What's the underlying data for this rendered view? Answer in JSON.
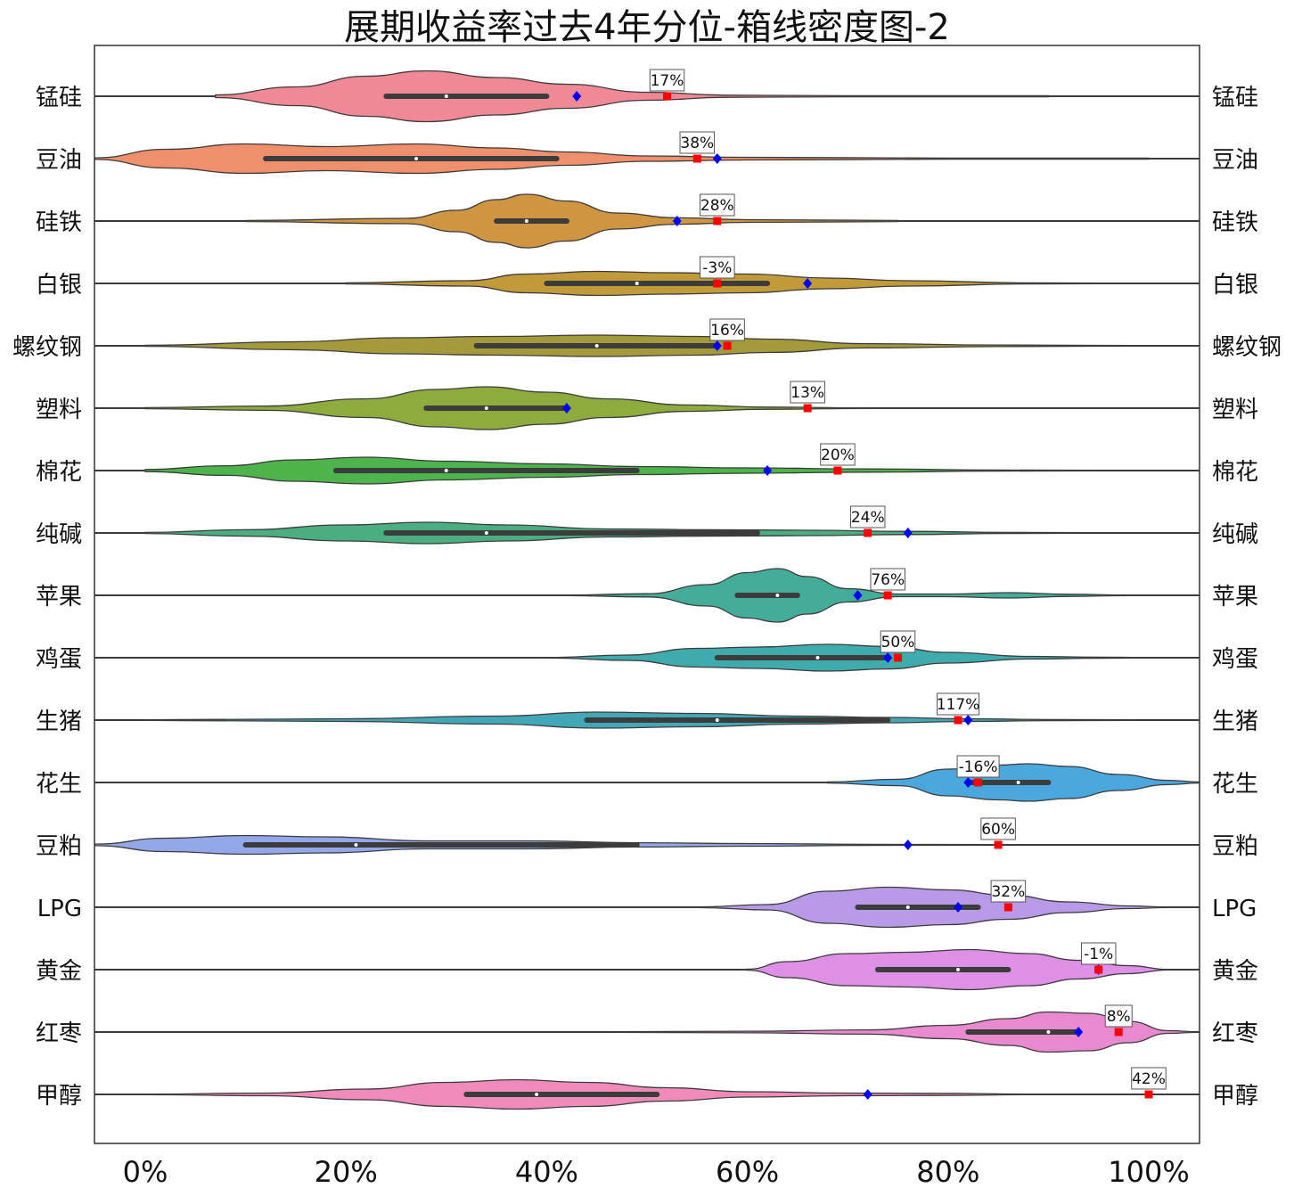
{
  "chart_data": {
    "type": "violin",
    "title": "展期收益率过去4年分位-箱线密度图-2",
    "xlabel": "",
    "ylabel": "",
    "xlim": [
      -0.05,
      1.05
    ],
    "x_ticks": [
      {
        "value": 0.0,
        "label": "0%"
      },
      {
        "value": 0.2,
        "label": "20%"
      },
      {
        "value": 0.4,
        "label": "40%"
      },
      {
        "value": 0.6,
        "label": "60%"
      },
      {
        "value": 0.8,
        "label": "80%"
      },
      {
        "value": 1.0,
        "label": "100%"
      }
    ],
    "grid": false,
    "markers": {
      "current_percentile": "#ff0000",
      "previous_percentile": "#0000ff"
    },
    "series": [
      {
        "name": "锰硅",
        "color": "#f08895",
        "box": {
          "q1": 0.24,
          "median": 0.3,
          "q3": 0.4
        },
        "density": [
          [
            0.07,
            0.05
          ],
          [
            0.15,
            0.35
          ],
          [
            0.22,
            0.75
          ],
          [
            0.28,
            0.95
          ],
          [
            0.35,
            0.7
          ],
          [
            0.42,
            0.45
          ],
          [
            0.5,
            0.15
          ],
          [
            0.58,
            0.04
          ],
          [
            0.7,
            0.02
          ],
          [
            0.9,
            0.02
          ]
        ],
        "current": 0.52,
        "current_label": "17%",
        "previous": 0.43
      },
      {
        "name": "豆油",
        "color": "#ef8f6c",
        "box": {
          "q1": 0.12,
          "median": 0.27,
          "q3": 0.41
        },
        "density": [
          [
            -0.05,
            0.03
          ],
          [
            0.02,
            0.35
          ],
          [
            0.1,
            0.55
          ],
          [
            0.18,
            0.45
          ],
          [
            0.27,
            0.55
          ],
          [
            0.35,
            0.4
          ],
          [
            0.42,
            0.25
          ],
          [
            0.5,
            0.1
          ],
          [
            0.6,
            0.05
          ],
          [
            0.8,
            0.02
          ],
          [
            1.0,
            0.02
          ]
        ],
        "current": 0.55,
        "current_label": "38%",
        "previous": 0.57
      },
      {
        "name": "硅铁",
        "color": "#d09540",
        "box": {
          "q1": 0.35,
          "median": 0.38,
          "q3": 0.42
        },
        "density": [
          [
            0.1,
            0.02
          ],
          [
            0.26,
            0.1
          ],
          [
            0.31,
            0.4
          ],
          [
            0.35,
            0.8
          ],
          [
            0.38,
            1.0
          ],
          [
            0.42,
            0.75
          ],
          [
            0.47,
            0.3
          ],
          [
            0.53,
            0.12
          ],
          [
            0.6,
            0.05
          ],
          [
            0.75,
            0.02
          ]
        ],
        "current": 0.57,
        "current_label": "28%",
        "previous": 0.53
      },
      {
        "name": "白银",
        "color": "#c19a3a",
        "box": {
          "q1": 0.4,
          "median": 0.49,
          "q3": 0.62
        },
        "density": [
          [
            0.2,
            0.02
          ],
          [
            0.32,
            0.1
          ],
          [
            0.38,
            0.35
          ],
          [
            0.45,
            0.45
          ],
          [
            0.52,
            0.4
          ],
          [
            0.6,
            0.35
          ],
          [
            0.68,
            0.2
          ],
          [
            0.76,
            0.1
          ],
          [
            0.88,
            0.02
          ],
          [
            0.95,
            0.01
          ]
        ],
        "current": 0.57,
        "current_label": "-3%",
        "previous": 0.66
      },
      {
        "name": "螺纹钢",
        "color": "#a59a3b",
        "box": {
          "q1": 0.33,
          "median": 0.45,
          "q3": 0.57
        },
        "density": [
          [
            0.0,
            0.02
          ],
          [
            0.15,
            0.15
          ],
          [
            0.25,
            0.3
          ],
          [
            0.35,
            0.35
          ],
          [
            0.45,
            0.4
          ],
          [
            0.55,
            0.35
          ],
          [
            0.62,
            0.25
          ],
          [
            0.72,
            0.08
          ],
          [
            0.85,
            0.03
          ],
          [
            0.98,
            0.01
          ]
        ],
        "current": 0.58,
        "current_label": "16%",
        "previous": 0.57
      },
      {
        "name": "塑料",
        "color": "#8eab3e",
        "box": {
          "q1": 0.28,
          "median": 0.34,
          "q3": 0.42
        },
        "density": [
          [
            0.0,
            0.02
          ],
          [
            0.12,
            0.08
          ],
          [
            0.22,
            0.35
          ],
          [
            0.29,
            0.7
          ],
          [
            0.34,
            0.8
          ],
          [
            0.4,
            0.6
          ],
          [
            0.46,
            0.35
          ],
          [
            0.54,
            0.12
          ],
          [
            0.62,
            0.04
          ],
          [
            0.72,
            0.01
          ]
        ],
        "current": 0.66,
        "current_label": "13%",
        "previous": 0.42
      },
      {
        "name": "棉花",
        "color": "#4db34b",
        "box": {
          "q1": 0.19,
          "median": 0.3,
          "q3": 0.49
        },
        "density": [
          [
            0.0,
            0.04
          ],
          [
            0.08,
            0.18
          ],
          [
            0.15,
            0.4
          ],
          [
            0.22,
            0.5
          ],
          [
            0.3,
            0.35
          ],
          [
            0.4,
            0.25
          ],
          [
            0.49,
            0.15
          ],
          [
            0.6,
            0.1
          ],
          [
            0.72,
            0.06
          ],
          [
            0.85,
            0.02
          ],
          [
            0.95,
            0.01
          ]
        ],
        "current": 0.69,
        "current_label": "20%",
        "previous": 0.62
      },
      {
        "name": "纯碱",
        "color": "#4aae80",
        "box": {
          "q1": 0.24,
          "median": 0.34,
          "q3": 0.61
        },
        "density": [
          [
            0.0,
            0.02
          ],
          [
            0.1,
            0.12
          ],
          [
            0.2,
            0.3
          ],
          [
            0.28,
            0.4
          ],
          [
            0.36,
            0.3
          ],
          [
            0.46,
            0.15
          ],
          [
            0.56,
            0.12
          ],
          [
            0.66,
            0.1
          ],
          [
            0.76,
            0.06
          ],
          [
            0.86,
            0.02
          ],
          [
            0.94,
            0.01
          ]
        ],
        "current": 0.72,
        "current_label": "24%",
        "previous": 0.76
      },
      {
        "name": "苹果",
        "color": "#44ad99",
        "box": {
          "q1": 0.59,
          "median": 0.63,
          "q3": 0.65
        },
        "density": [
          [
            0.42,
            0.01
          ],
          [
            0.5,
            0.06
          ],
          [
            0.56,
            0.4
          ],
          [
            0.6,
            0.85
          ],
          [
            0.63,
            1.0
          ],
          [
            0.66,
            0.7
          ],
          [
            0.7,
            0.25
          ],
          [
            0.75,
            0.05
          ],
          [
            0.8,
            0.05
          ],
          [
            0.86,
            0.1
          ],
          [
            0.92,
            0.04
          ],
          [
            0.98,
            0.01
          ]
        ],
        "current": 0.74,
        "current_label": "76%",
        "previous": 0.71
      },
      {
        "name": "鸡蛋",
        "color": "#40abac",
        "box": {
          "q1": 0.57,
          "median": 0.67,
          "q3": 0.74
        },
        "density": [
          [
            0.4,
            0.01
          ],
          [
            0.48,
            0.1
          ],
          [
            0.55,
            0.35
          ],
          [
            0.61,
            0.4
          ],
          [
            0.68,
            0.5
          ],
          [
            0.74,
            0.42
          ],
          [
            0.8,
            0.2
          ],
          [
            0.88,
            0.05
          ],
          [
            0.95,
            0.02
          ],
          [
            1.0,
            0.01
          ]
        ],
        "current": 0.75,
        "current_label": "50%",
        "previous": 0.74
      },
      {
        "name": "生猪",
        "color": "#42a8b8",
        "box": {
          "q1": 0.44,
          "median": 0.57,
          "q3": 0.74
        },
        "density": [
          [
            0.0,
            0.01
          ],
          [
            0.2,
            0.05
          ],
          [
            0.35,
            0.15
          ],
          [
            0.45,
            0.3
          ],
          [
            0.55,
            0.25
          ],
          [
            0.65,
            0.15
          ],
          [
            0.74,
            0.1
          ],
          [
            0.82,
            0.05
          ],
          [
            0.9,
            0.02
          ],
          [
            1.0,
            0.01
          ]
        ],
        "current": 0.81,
        "current_label": "117%",
        "previous": 0.82
      },
      {
        "name": "花生",
        "color": "#4aa8df",
        "box": {
          "q1": 0.82,
          "median": 0.87,
          "q3": 0.9
        },
        "density": [
          [
            0.68,
            0.02
          ],
          [
            0.75,
            0.12
          ],
          [
            0.8,
            0.5
          ],
          [
            0.85,
            0.65
          ],
          [
            0.88,
            0.7
          ],
          [
            0.92,
            0.6
          ],
          [
            0.97,
            0.3
          ],
          [
            1.02,
            0.08
          ],
          [
            1.05,
            0.02
          ]
        ],
        "current": 0.83,
        "current_label": "-16%",
        "previous": 0.82
      },
      {
        "name": "豆粕",
        "color": "#92a8e8",
        "box": {
          "q1": 0.1,
          "median": 0.21,
          "q3": 0.49
        },
        "density": [
          [
            -0.05,
            0.03
          ],
          [
            0.02,
            0.25
          ],
          [
            0.1,
            0.35
          ],
          [
            0.18,
            0.3
          ],
          [
            0.28,
            0.15
          ],
          [
            0.38,
            0.15
          ],
          [
            0.49,
            0.08
          ],
          [
            0.6,
            0.05
          ],
          [
            0.72,
            0.02
          ],
          [
            0.85,
            0.01
          ]
        ],
        "current": 0.85,
        "current_label": "60%",
        "previous": 0.76
      },
      {
        "name": "LPG",
        "color": "#b89ae9",
        "box": {
          "q1": 0.71,
          "median": 0.76,
          "q3": 0.83
        },
        "density": [
          [
            0.55,
            0.01
          ],
          [
            0.62,
            0.1
          ],
          [
            0.68,
            0.6
          ],
          [
            0.74,
            0.75
          ],
          [
            0.8,
            0.65
          ],
          [
            0.86,
            0.45
          ],
          [
            0.92,
            0.2
          ],
          [
            0.98,
            0.05
          ],
          [
            1.02,
            0.01
          ]
        ],
        "current": 0.86,
        "current_label": "32%",
        "previous": 0.81
      },
      {
        "name": "黄金",
        "color": "#dd90e5",
        "box": {
          "q1": 0.73,
          "median": 0.81,
          "q3": 0.86
        },
        "density": [
          [
            0.6,
            0.02
          ],
          [
            0.64,
            0.3
          ],
          [
            0.7,
            0.6
          ],
          [
            0.76,
            0.65
          ],
          [
            0.82,
            0.75
          ],
          [
            0.88,
            0.6
          ],
          [
            0.93,
            0.35
          ],
          [
            0.98,
            0.15
          ],
          [
            1.02,
            0.01
          ]
        ],
        "current": 0.95,
        "current_label": "-1%",
        "previous": 0.95
      },
      {
        "name": "红枣",
        "color": "#e98ad1",
        "box": {
          "q1": 0.82,
          "median": 0.9,
          "q3": 0.93
        },
        "density": [
          [
            0.46,
            0.01
          ],
          [
            0.6,
            0.03
          ],
          [
            0.72,
            0.08
          ],
          [
            0.8,
            0.25
          ],
          [
            0.86,
            0.5
          ],
          [
            0.9,
            0.75
          ],
          [
            0.94,
            0.7
          ],
          [
            0.98,
            0.4
          ],
          [
            1.02,
            0.05
          ],
          [
            1.05,
            0.01
          ]
        ],
        "current": 0.97,
        "current_label": "8%",
        "previous": 0.93
      },
      {
        "name": "甲醇",
        "color": "#ef8ab9",
        "box": {
          "q1": 0.32,
          "median": 0.39,
          "q3": 0.51
        },
        "density": [
          [
            0.0,
            0.01
          ],
          [
            0.12,
            0.05
          ],
          [
            0.22,
            0.2
          ],
          [
            0.3,
            0.45
          ],
          [
            0.37,
            0.55
          ],
          [
            0.44,
            0.45
          ],
          [
            0.52,
            0.25
          ],
          [
            0.6,
            0.1
          ],
          [
            0.7,
            0.05
          ],
          [
            0.78,
            0.04
          ],
          [
            0.9,
            0.01
          ],
          [
            1.0,
            0.01
          ]
        ],
        "current": 1.0,
        "current_label": "42%",
        "previous": 0.72
      }
    ]
  }
}
